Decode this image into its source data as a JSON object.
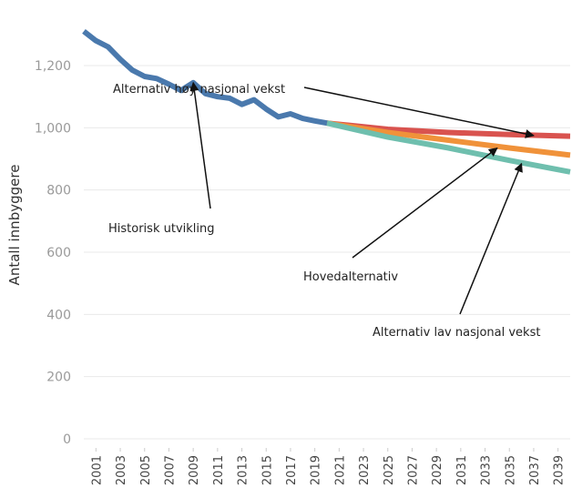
{
  "chart_data": {
    "type": "line",
    "title": "",
    "xlabel": "",
    "ylabel": "Antall innbyggere",
    "ylim": [
      0,
      1300
    ],
    "xlim": [
      2000,
      2040
    ],
    "y_ticks": [
      0,
      200,
      400,
      600,
      800,
      1000,
      1200
    ],
    "y_tick_labels": [
      "0",
      "200",
      "400",
      "600",
      "800",
      "1,000",
      "1,200"
    ],
    "x_tick_labels": [
      "2001",
      "2003",
      "2005",
      "2007",
      "2009",
      "2011",
      "2013",
      "2015",
      "2017",
      "2019",
      "2021",
      "2023",
      "2025",
      "2027",
      "2029",
      "2031",
      "2033",
      "2035",
      "2037",
      "2039"
    ],
    "grid": true,
    "series": [
      {
        "name": "Historisk utvikling",
        "color": "#4a79ad",
        "x": [
          2000,
          2001,
          2002,
          2003,
          2004,
          2005,
          2006,
          2007,
          2008,
          2009,
          2010,
          2011,
          2012,
          2013,
          2014,
          2015,
          2016,
          2017,
          2018,
          2019,
          2020
        ],
        "y": [
          1310,
          1280,
          1260,
          1220,
          1185,
          1165,
          1158,
          1140,
          1120,
          1145,
          1110,
          1100,
          1095,
          1075,
          1090,
          1060,
          1035,
          1045,
          1030,
          1022,
          1015
        ]
      },
      {
        "name": "Alternativ høy nasjonal vekst",
        "color": "#d9534f",
        "x": [
          2020,
          2025,
          2030,
          2035,
          2040
        ],
        "y": [
          1015,
          995,
          985,
          978,
          973
        ]
      },
      {
        "name": "Hovedalternativ",
        "color": "#f0923a",
        "x": [
          2020,
          2025,
          2030,
          2035,
          2040
        ],
        "y": [
          1015,
          985,
          960,
          935,
          912
        ]
      },
      {
        "name": "Alternativ lav nasjonal vekst",
        "color": "#6fbfae",
        "x": [
          2020,
          2025,
          2030,
          2035,
          2040
        ],
        "y": [
          1015,
          970,
          935,
          895,
          858
        ]
      }
    ],
    "annotations": [
      {
        "text": "Alternativ høy nasjonal vekst",
        "arrow_to": [
          2037,
          975
        ]
      },
      {
        "text": "Historisk utvikling",
        "arrow_to": [
          2009,
          1145
        ]
      },
      {
        "text": "Hovedalternativ",
        "arrow_to": [
          2034,
          935
        ]
      },
      {
        "text": "Alternativ lav nasjonal vekst",
        "arrow_to": [
          2036,
          885
        ]
      }
    ]
  }
}
